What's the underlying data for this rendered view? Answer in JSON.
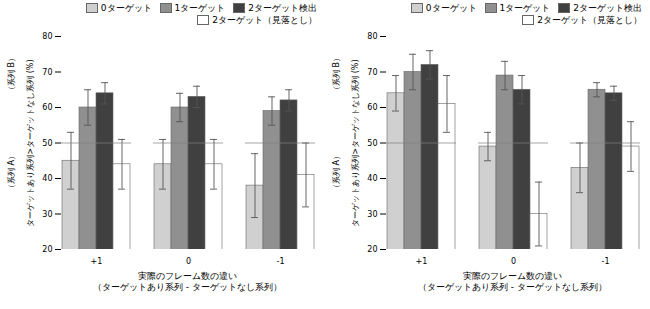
{
  "chart_data": [
    {
      "type": "bar",
      "categories": [
        "+1",
        "0",
        "-1"
      ],
      "series": [
        {
          "name": "0ターゲット",
          "color": "#d0d0d0",
          "values": [
            45,
            44,
            38
          ],
          "errors": [
            8,
            7,
            9
          ]
        },
        {
          "name": "1ターゲット",
          "color": "#909090",
          "values": [
            60,
            60,
            59
          ],
          "errors": [
            5,
            4,
            4
          ]
        },
        {
          "name": "2ターゲット検出",
          "color": "#404040",
          "values": [
            64,
            63,
            62
          ],
          "errors": [
            3,
            3,
            3
          ]
        },
        {
          "name": "2ターゲット（見落とし）",
          "color": "#ffffff",
          "values": [
            44,
            44,
            41
          ],
          "errors": [
            7,
            7,
            9
          ]
        }
      ],
      "xlabel": "実際のフレーム数の違い\n（ターゲットあり系列 - ターゲットなし系列）",
      "ylabel": "ターゲットあり系列>ターゲットなし系列 (%)",
      "annotations": [
        "（系列 B）",
        "（系列 A）"
      ],
      "ylim": [
        20,
        80
      ],
      "yticks": [
        20,
        30,
        40,
        50,
        60,
        70,
        80
      ],
      "hline": 50,
      "legend": "upper right"
    },
    {
      "type": "bar",
      "categories": [
        "+1",
        "0",
        "-1"
      ],
      "series": [
        {
          "name": "0ターゲット",
          "color": "#d0d0d0",
          "values": [
            64,
            49,
            43
          ],
          "errors": [
            5,
            4,
            7
          ]
        },
        {
          "name": "1ターゲット",
          "color": "#909090",
          "values": [
            70,
            69,
            65
          ],
          "errors": [
            5,
            4,
            2
          ]
        },
        {
          "name": "2ターゲット検出",
          "color": "#404040",
          "values": [
            72,
            65,
            64
          ],
          "errors": [
            4,
            4,
            2
          ]
        },
        {
          "name": "2ターゲット（見落とし）",
          "color": "#ffffff",
          "values": [
            61,
            30,
            49
          ],
          "errors": [
            8,
            9,
            7
          ]
        }
      ],
      "xlabel": "実際のフレーム数の違い\n（ターゲットあり系列 - ターゲットなし系列）",
      "ylabel": "ターゲットあり系列>ターゲットなし系列 (%)",
      "annotations": [
        "（系列 B）",
        "（系列 A）"
      ],
      "ylim": [
        20,
        80
      ],
      "yticks": [
        20,
        30,
        40,
        50,
        60,
        70,
        80
      ],
      "hline": 50,
      "legend": "upper right"
    }
  ]
}
